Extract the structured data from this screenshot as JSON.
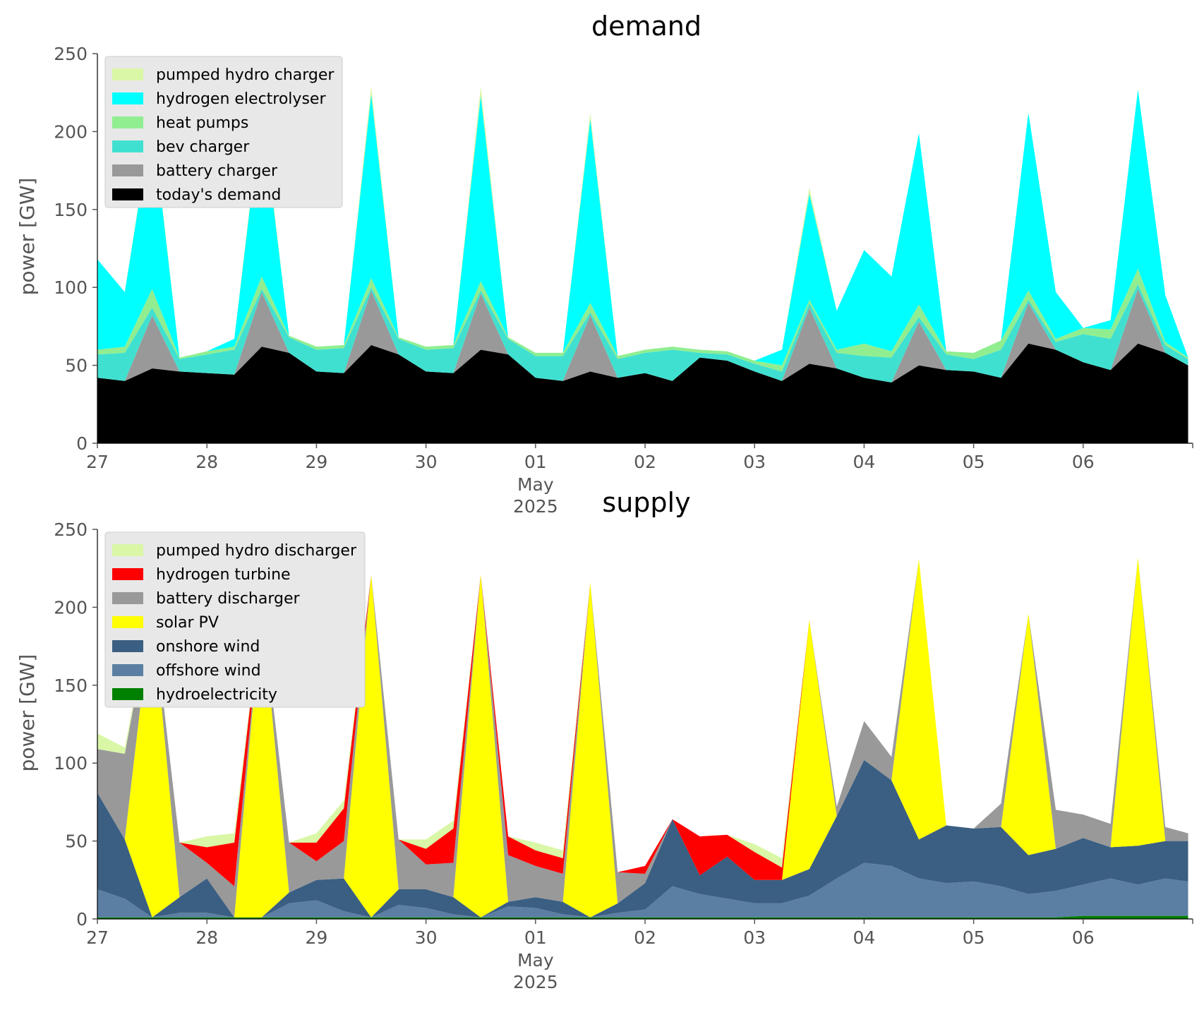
{
  "chart_data": [
    {
      "type": "area",
      "stacked": true,
      "title": "demand",
      "ylabel": "power [GW]",
      "ylim": [
        0,
        250
      ],
      "yticks": [
        0,
        50,
        100,
        150,
        200,
        250
      ],
      "xlim": [
        "2025-04-27",
        "2025-05-07"
      ],
      "xticks": [
        {
          "date": "2025-04-27",
          "label": "27"
        },
        {
          "date": "2025-04-28",
          "label": "28"
        },
        {
          "date": "2025-04-29",
          "label": "29"
        },
        {
          "date": "2025-04-30",
          "label": "30"
        },
        {
          "date": "2025-05-01",
          "label": "01"
        },
        {
          "date": "2025-05-02",
          "label": "02"
        },
        {
          "date": "2025-05-03",
          "label": "03"
        },
        {
          "date": "2025-05-04",
          "label": "04"
        },
        {
          "date": "2025-05-05",
          "label": "05"
        },
        {
          "date": "2025-05-06",
          "label": "06"
        }
      ],
      "xtick_sublabel": [
        "May",
        "2025"
      ],
      "grid": false,
      "legend_position": "top-left",
      "legend_order": [
        "pumped hydro charger",
        "hydrogen electrolyser",
        "heat pumps",
        "bev charger",
        "battery charger",
        "today's demand"
      ],
      "x": [
        "2025-04-27T00:00",
        "2025-04-27T06:00",
        "2025-04-27T12:00",
        "2025-04-27T18:00",
        "2025-04-28T00:00",
        "2025-04-28T06:00",
        "2025-04-28T12:00",
        "2025-04-28T18:00",
        "2025-04-29T00:00",
        "2025-04-29T06:00",
        "2025-04-29T12:00",
        "2025-04-29T18:00",
        "2025-04-30T00:00",
        "2025-04-30T06:00",
        "2025-04-30T12:00",
        "2025-04-30T18:00",
        "2025-05-01T00:00",
        "2025-05-01T06:00",
        "2025-05-01T12:00",
        "2025-05-01T18:00",
        "2025-05-02T00:00",
        "2025-05-02T06:00",
        "2025-05-02T12:00",
        "2025-05-02T18:00",
        "2025-05-03T00:00",
        "2025-05-03T06:00",
        "2025-05-03T12:00",
        "2025-05-03T18:00",
        "2025-05-04T00:00",
        "2025-05-04T06:00",
        "2025-05-04T12:00",
        "2025-05-04T18:00",
        "2025-05-05T00:00",
        "2025-05-05T06:00",
        "2025-05-05T12:00",
        "2025-05-05T18:00",
        "2025-05-06T00:00",
        "2025-05-06T06:00",
        "2025-05-06T12:00",
        "2025-05-06T18:00",
        "2025-05-06T23:00"
      ],
      "series": [
        {
          "name": "today's demand",
          "color": "#000000",
          "values": [
            42,
            40,
            48,
            46,
            45,
            44,
            62,
            58,
            46,
            45,
            63,
            57,
            46,
            45,
            60,
            57,
            42,
            40,
            46,
            42,
            45,
            40,
            55,
            53,
            46,
            40,
            51,
            48,
            42,
            39,
            50,
            47,
            46,
            42,
            64,
            60,
            52,
            47,
            64,
            58,
            50
          ]
        },
        {
          "name": "battery charger",
          "color": "#999999",
          "values": [
            0,
            0,
            34,
            0,
            0,
            0,
            35,
            0,
            0,
            0,
            35,
            0,
            0,
            0,
            36,
            0,
            0,
            0,
            36,
            0,
            0,
            0,
            0,
            0,
            0,
            0,
            36,
            0,
            0,
            0,
            28,
            0,
            0,
            0,
            26,
            0,
            0,
            0,
            35,
            0,
            0
          ]
        },
        {
          "name": "bev charger",
          "color": "#40e0d0",
          "values": [
            15,
            18,
            5,
            8,
            12,
            16,
            2,
            10,
            14,
            16,
            2,
            10,
            14,
            16,
            2,
            10,
            14,
            16,
            2,
            12,
            13,
            20,
            3,
            4,
            5,
            6,
            3,
            10,
            14,
            16,
            3,
            10,
            8,
            18,
            2,
            5,
            18,
            20,
            3,
            5,
            4
          ]
        },
        {
          "name": "heat pumps",
          "color": "#90ee90",
          "values": [
            3,
            4,
            12,
            1,
            2,
            2,
            8,
            1,
            2,
            2,
            6,
            1,
            2,
            2,
            6,
            1,
            2,
            2,
            6,
            2,
            2,
            2,
            2,
            2,
            2,
            4,
            2,
            2,
            8,
            4,
            8,
            2,
            4,
            6,
            6,
            2,
            4,
            6,
            10,
            2,
            1
          ]
        },
        {
          "name": "hydrogen electrolyser",
          "color": "#00ffff",
          "values": [
            58,
            35,
            109,
            0,
            0,
            5,
            108,
            0,
            0,
            0,
            118,
            0,
            0,
            0,
            119,
            0,
            0,
            0,
            118,
            0,
            0,
            0,
            0,
            0,
            0,
            10,
            68,
            25,
            60,
            48,
            110,
            0,
            0,
            0,
            114,
            30,
            0,
            6,
            115,
            30,
            0
          ]
        },
        {
          "name": "pumped hydro charger",
          "color": "#d9f7a6",
          "values": [
            0,
            0,
            3,
            0,
            0,
            0,
            4,
            0,
            0,
            0,
            5,
            0,
            0,
            0,
            6,
            0,
            0,
            0,
            4,
            0,
            0,
            0,
            0,
            0,
            0,
            0,
            4,
            0,
            0,
            0,
            0,
            0,
            0,
            0,
            0,
            0,
            0,
            0,
            0,
            0,
            0
          ]
        }
      ]
    },
    {
      "type": "area",
      "stacked": true,
      "title": "supply",
      "ylabel": "power [GW]",
      "ylim": [
        0,
        250
      ],
      "yticks": [
        0,
        50,
        100,
        150,
        200,
        250
      ],
      "xlim": [
        "2025-04-27",
        "2025-05-07"
      ],
      "xticks": [
        {
          "date": "2025-04-27",
          "label": "27"
        },
        {
          "date": "2025-04-28",
          "label": "28"
        },
        {
          "date": "2025-04-29",
          "label": "29"
        },
        {
          "date": "2025-04-30",
          "label": "30"
        },
        {
          "date": "2025-05-01",
          "label": "01"
        },
        {
          "date": "2025-05-02",
          "label": "02"
        },
        {
          "date": "2025-05-03",
          "label": "03"
        },
        {
          "date": "2025-05-04",
          "label": "04"
        },
        {
          "date": "2025-05-05",
          "label": "05"
        },
        {
          "date": "2025-05-06",
          "label": "06"
        }
      ],
      "xtick_sublabel": [
        "May",
        "2025"
      ],
      "grid": false,
      "legend_position": "top-left",
      "legend_order": [
        "pumped hydro discharger",
        "hydrogen turbine",
        "battery discharger",
        "solar PV",
        "onshore wind",
        "offshore wind",
        "hydroelectricity"
      ],
      "x": [
        "2025-04-27T00:00",
        "2025-04-27T06:00",
        "2025-04-27T12:00",
        "2025-04-27T18:00",
        "2025-04-28T00:00",
        "2025-04-28T06:00",
        "2025-04-28T12:00",
        "2025-04-28T18:00",
        "2025-04-29T00:00",
        "2025-04-29T06:00",
        "2025-04-29T12:00",
        "2025-04-29T18:00",
        "2025-04-30T00:00",
        "2025-04-30T06:00",
        "2025-04-30T12:00",
        "2025-04-30T18:00",
        "2025-05-01T00:00",
        "2025-05-01T06:00",
        "2025-05-01T12:00",
        "2025-05-01T18:00",
        "2025-05-02T00:00",
        "2025-05-02T06:00",
        "2025-05-02T12:00",
        "2025-05-02T18:00",
        "2025-05-03T00:00",
        "2025-05-03T06:00",
        "2025-05-03T12:00",
        "2025-05-03T18:00",
        "2025-05-04T00:00",
        "2025-05-04T06:00",
        "2025-05-04T12:00",
        "2025-05-04T18:00",
        "2025-05-05T00:00",
        "2025-05-05T06:00",
        "2025-05-05T12:00",
        "2025-05-05T18:00",
        "2025-05-06T00:00",
        "2025-05-06T06:00",
        "2025-05-06T12:00",
        "2025-05-06T18:00",
        "2025-05-06T23:00"
      ],
      "series": [
        {
          "name": "hydroelectricity",
          "color": "#008000",
          "values": [
            1,
            1,
            1,
            1,
            1,
            1,
            1,
            1,
            1,
            1,
            1,
            1,
            1,
            1,
            1,
            1,
            1,
            1,
            1,
            1,
            1,
            1,
            1,
            1,
            1,
            1,
            1,
            1,
            1,
            1,
            1,
            1,
            1,
            1,
            1,
            1,
            2,
            2,
            2,
            2,
            2
          ]
        },
        {
          "name": "offshore wind",
          "color": "#5b7fa3",
          "values": [
            18,
            12,
            0,
            3,
            3,
            0,
            0,
            9,
            11,
            4,
            0,
            8,
            6,
            2,
            0,
            7,
            6,
            2,
            0,
            3,
            5,
            20,
            15,
            12,
            9,
            9,
            14,
            25,
            35,
            33,
            25,
            22,
            23,
            20,
            15,
            17,
            20,
            24,
            20,
            24,
            22
          ]
        },
        {
          "name": "onshore wind",
          "color": "#3b5f82",
          "values": [
            62,
            38,
            0,
            10,
            22,
            0,
            0,
            7,
            13,
            21,
            0,
            10,
            12,
            11,
            0,
            3,
            7,
            8,
            0,
            6,
            17,
            43,
            12,
            27,
            15,
            15,
            17,
            40,
            66,
            55,
            25,
            37,
            34,
            38,
            25,
            27,
            30,
            20,
            25,
            24,
            26
          ]
        },
        {
          "name": "solar PV",
          "color": "#ffff00",
          "values": [
            0,
            0,
            200,
            0,
            0,
            0,
            200,
            0,
            0,
            0,
            220,
            0,
            0,
            0,
            220,
            0,
            0,
            0,
            215,
            0,
            0,
            0,
            0,
            0,
            0,
            0,
            160,
            0,
            0,
            0,
            180,
            0,
            0,
            0,
            155,
            0,
            0,
            0,
            185,
            0,
            0
          ]
        },
        {
          "name": "battery discharger",
          "color": "#999999",
          "values": [
            28,
            55,
            0,
            35,
            10,
            20,
            0,
            32,
            12,
            24,
            0,
            32,
            16,
            22,
            0,
            30,
            20,
            18,
            0,
            20,
            6,
            0,
            0,
            0,
            0,
            0,
            0,
            6,
            25,
            15,
            0,
            0,
            0,
            15,
            0,
            25,
            15,
            15,
            0,
            9,
            5
          ]
        },
        {
          "name": "hydrogen turbine",
          "color": "#ff0000",
          "values": [
            0,
            0,
            0,
            0,
            10,
            28,
            0,
            0,
            12,
            21,
            0,
            0,
            10,
            22,
            0,
            12,
            10,
            10,
            0,
            0,
            5,
            0,
            25,
            14,
            18,
            8,
            0,
            0,
            0,
            0,
            0,
            0,
            0,
            0,
            0,
            0,
            0,
            0,
            0,
            0,
            0
          ]
        },
        {
          "name": "pumped hydro discharger",
          "color": "#d9f7a6",
          "values": [
            10,
            4,
            0,
            0,
            7,
            6,
            0,
            0,
            6,
            5,
            0,
            0,
            6,
            5,
            0,
            0,
            5,
            5,
            0,
            0,
            0,
            0,
            0,
            0,
            5,
            6,
            0,
            0,
            0,
            0,
            0,
            0,
            0,
            0,
            0,
            0,
            0,
            0,
            0,
            0,
            0
          ]
        }
      ]
    }
  ]
}
